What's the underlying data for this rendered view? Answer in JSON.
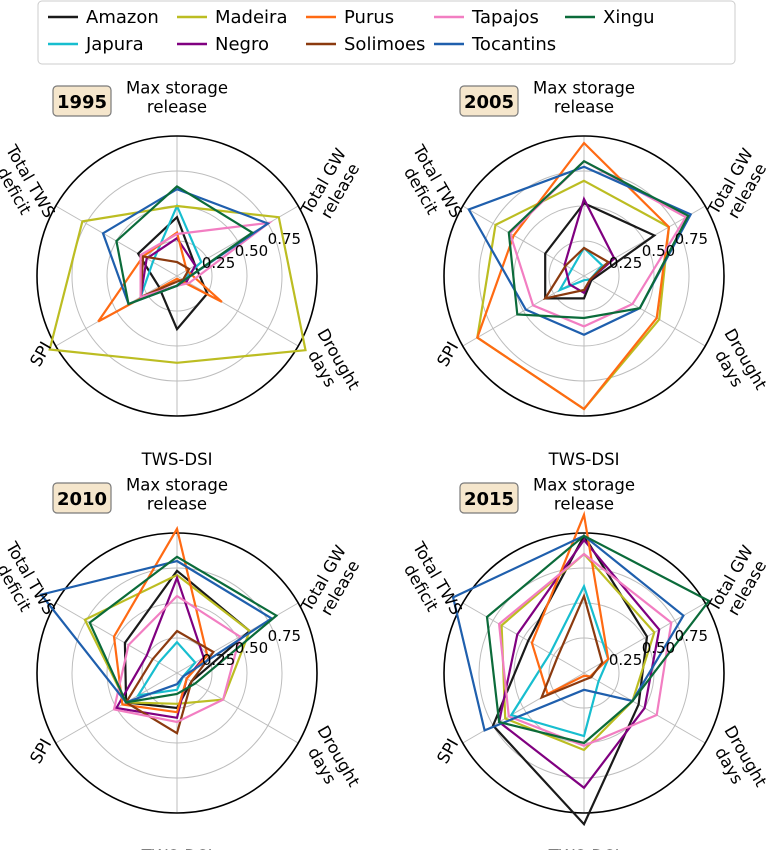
{
  "legend": [
    {
      "name": "Amazon",
      "color": "#1a1a1a"
    },
    {
      "name": "Japura",
      "color": "#17becf"
    },
    {
      "name": "Madeira",
      "color": "#bcbd22"
    },
    {
      "name": "Negro",
      "color": "#800080"
    },
    {
      "name": "Purus",
      "color": "#ff6a13"
    },
    {
      "name": "Solimoes",
      "color": "#8b3a0f"
    },
    {
      "name": "Tapajos",
      "color": "#f27ec2"
    },
    {
      "name": "Tocantins",
      "color": "#1f5fad"
    },
    {
      "name": "Xingu",
      "color": "#0b6b3a"
    }
  ],
  "axes": [
    "Max storage release",
    "Total GW release",
    "Drought days",
    "TWS-DSI",
    "SPI",
    "Total TWS deficit"
  ],
  "radial_ticks": [
    "0.25",
    "0.50",
    "0.75"
  ],
  "chart_data": [
    {
      "type": "radar",
      "title": "1995",
      "axes": [
        "Max storage release",
        "Total GW release",
        "Drought days",
        "TWS-DSI",
        "SPI",
        "Total TWS deficit"
      ],
      "rlim": [
        0,
        1
      ],
      "grid": true,
      "series": [
        {
          "name": "Amazon",
          "values": [
            0.42,
            0.15,
            0.25,
            0.38,
            0.15,
            0.32
          ]
        },
        {
          "name": "Japura",
          "values": [
            0.5,
            0.2,
            0.05,
            0.07,
            0.3,
            0.2
          ]
        },
        {
          "name": "Madeira",
          "values": [
            0.5,
            0.84,
            1.06,
            0.62,
            1.05,
            0.78
          ]
        },
        {
          "name": "Negro",
          "values": [
            0.27,
            0.15,
            0.08,
            0.07,
            0.3,
            0.25
          ]
        },
        {
          "name": "Purus",
          "values": [
            0.31,
            0.08,
            0.37,
            0.02,
            0.65,
            0.28
          ]
        },
        {
          "name": "Solimoes",
          "values": [
            0.1,
            0.1,
            0.05,
            0.04,
            0.3,
            0.28
          ]
        },
        {
          "name": "Tapajos",
          "values": [
            0.3,
            0.76,
            0.1,
            0.07,
            0.3,
            0.3
          ]
        },
        {
          "name": "Tocantins",
          "values": [
            0.62,
            0.75,
            0.06,
            0.07,
            0.4,
            0.61
          ]
        },
        {
          "name": "Xingu",
          "values": [
            0.64,
            0.62,
            0.06,
            0.07,
            0.4,
            0.5
          ]
        }
      ]
    },
    {
      "type": "radar",
      "title": "2005",
      "axes": [
        "Max storage release",
        "Total GW release",
        "Drought days",
        "TWS-DSI",
        "SPI",
        "Total TWS deficit"
      ],
      "rlim": [
        0,
        1
      ],
      "grid": true,
      "series": [
        {
          "name": "Amazon",
          "values": [
            0.52,
            0.58,
            0.06,
            0.16,
            0.32,
            0.32
          ]
        },
        {
          "name": "Japura",
          "values": [
            0.2,
            0.15,
            0.05,
            0.03,
            0.2,
            0.1
          ]
        },
        {
          "name": "Madeira",
          "values": [
            0.68,
            0.7,
            0.62,
            0.95,
            0.88,
            0.73
          ]
        },
        {
          "name": "Negro",
          "values": [
            0.55,
            0.25,
            0.05,
            0.12,
            0.12,
            0.16
          ]
        },
        {
          "name": "Purus",
          "values": [
            0.95,
            0.7,
            0.6,
            0.95,
            0.88,
            0.58
          ]
        },
        {
          "name": "Solimoes",
          "values": [
            0.2,
            0.2,
            0.05,
            0.1,
            0.32,
            0.15
          ]
        },
        {
          "name": "Tapajos",
          "values": [
            0.82,
            0.84,
            0.4,
            0.36,
            0.42,
            0.61
          ]
        },
        {
          "name": "Tocantins",
          "values": [
            0.78,
            0.88,
            0.46,
            0.42,
            0.48,
            0.95
          ]
        },
        {
          "name": "Xingu",
          "values": [
            0.82,
            0.86,
            0.46,
            0.3,
            0.55,
            0.62
          ]
        }
      ]
    },
    {
      "type": "radar",
      "title": "2010",
      "axes": [
        "Max storage release",
        "Total GW release",
        "Drought days",
        "TWS-DSI",
        "SPI",
        "Total TWS deficit"
      ],
      "rlim": [
        0,
        1
      ],
      "grid": true,
      "series": [
        {
          "name": "Amazon",
          "values": [
            0.73,
            0.6,
            0.12,
            0.25,
            0.42,
            0.43
          ]
        },
        {
          "name": "Japura",
          "values": [
            0.22,
            0.15,
            0.05,
            0.12,
            0.32,
            0.15
          ]
        },
        {
          "name": "Madeira",
          "values": [
            0.7,
            0.6,
            0.38,
            0.22,
            0.42,
            0.76
          ]
        },
        {
          "name": "Negro",
          "values": [
            0.68,
            0.22,
            0.08,
            0.32,
            0.5,
            0.25
          ]
        },
        {
          "name": "Purus",
          "values": [
            1.03,
            0.25,
            0.08,
            0.28,
            0.45,
            0.52
          ]
        },
        {
          "name": "Solimoes",
          "values": [
            0.3,
            0.3,
            0.12,
            0.43,
            0.42,
            0.2
          ]
        },
        {
          "name": "Tapajos",
          "values": [
            0.55,
            0.52,
            0.38,
            0.35,
            0.52,
            0.4
          ]
        },
        {
          "name": "Tocantins",
          "values": [
            0.8,
            0.78,
            0.05,
            0.08,
            0.42,
            1.12
          ]
        },
        {
          "name": "Xingu",
          "values": [
            0.83,
            0.82,
            0.15,
            0.15,
            0.42,
            0.72
          ]
        }
      ]
    },
    {
      "type": "radar",
      "title": "2015",
      "axes": [
        "Max storage release",
        "Total GW release",
        "Drought days",
        "TWS-DSI",
        "SPI",
        "Total TWS deficit"
      ],
      "rlim": [
        0,
        1
      ],
      "grid": true,
      "series": [
        {
          "name": "Amazon",
          "values": [
            0.98,
            0.52,
            0.45,
            1.08,
            0.75,
            0.46
          ]
        },
        {
          "name": "Japura",
          "values": [
            0.62,
            0.2,
            0.12,
            0.45,
            0.6,
            0.28
          ]
        },
        {
          "name": "Madeira",
          "values": [
            0.85,
            0.58,
            0.4,
            0.55,
            0.65,
            0.68
          ]
        },
        {
          "name": "Negro",
          "values": [
            0.95,
            0.62,
            0.5,
            0.82,
            0.7,
            0.55
          ]
        },
        {
          "name": "Purus",
          "values": [
            1.13,
            0.2,
            0.05,
            0.02,
            0.3,
            0.43
          ]
        },
        {
          "name": "Solimoes",
          "values": [
            0.55,
            0.15,
            0.06,
            0.05,
            0.35,
            0.22
          ]
        },
        {
          "name": "Tapajos",
          "values": [
            0.85,
            0.72,
            0.6,
            0.52,
            0.62,
            0.7
          ]
        },
        {
          "name": "Tocantins",
          "values": [
            0.98,
            0.82,
            0.4,
            0.12,
            0.82,
            1.08
          ]
        },
        {
          "name": "Xingu",
          "values": [
            0.98,
            1.03,
            0.4,
            0.5,
            0.7,
            0.8
          ]
        }
      ]
    }
  ]
}
